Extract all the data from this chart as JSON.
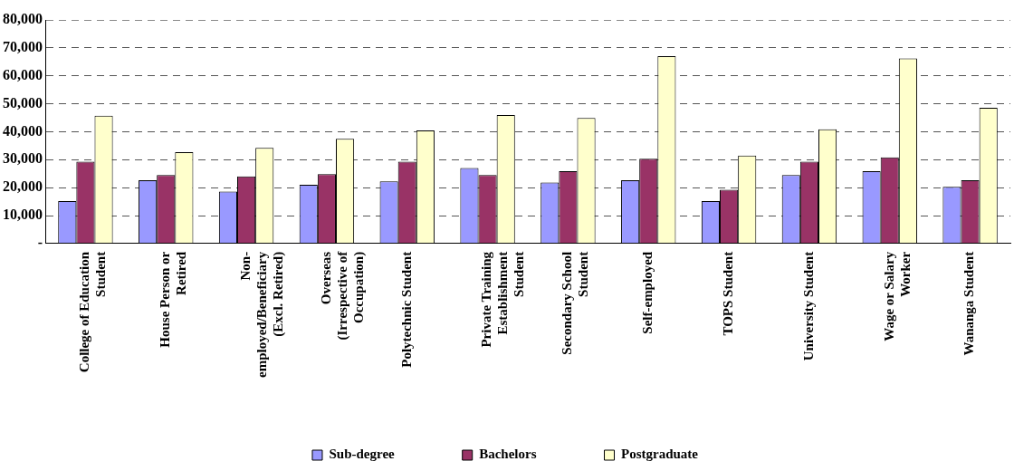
{
  "chart_data": {
    "type": "bar",
    "categories": [
      "College of Education\nStudent",
      "House Person or\nRetired",
      "Non-\nemployed/Beneficiary\n(Excl. Retired)",
      "Overseas\n(Irrespective of\nOccupation)",
      "Polytechnic Student",
      "Private Training\nEstablishment\nStudent",
      "Secondary School\nStudent",
      "Self-employed",
      "TOPS Student",
      "University Student",
      "Wage or Salary\nWorker",
      "Wananga Student"
    ],
    "series": [
      {
        "name": "Sub-degree",
        "color": "#9999ff",
        "values": [
          15200,
          22600,
          18600,
          21000,
          22200,
          27000,
          21800,
          22600,
          15200,
          24500,
          25900,
          20300
        ]
      },
      {
        "name": "Bachelors",
        "color": "#993366",
        "values": [
          29300,
          24500,
          24000,
          24800,
          29300,
          24500,
          25900,
          30300,
          19200,
          29300,
          30800,
          22600
        ]
      },
      {
        "name": "Postgraduate",
        "color": "#ffffcc",
        "values": [
          45700,
          32700,
          34200,
          37500,
          40500,
          46000,
          44900,
          67000,
          31500,
          40900,
          66200,
          48600
        ]
      }
    ],
    "ylim": [
      0,
      80000
    ],
    "yticks": [
      {
        "value": 0,
        "label": "-"
      },
      {
        "value": 10000,
        "label": "10,000"
      },
      {
        "value": 20000,
        "label": "20,000"
      },
      {
        "value": 30000,
        "label": "30,000"
      },
      {
        "value": 40000,
        "label": "40,000"
      },
      {
        "value": 50000,
        "label": "50,000"
      },
      {
        "value": 60000,
        "label": "60,000"
      },
      {
        "value": 70000,
        "label": "70,000"
      },
      {
        "value": 80000,
        "label": "80,000"
      }
    ],
    "grid": "y",
    "legend": "bottom"
  }
}
